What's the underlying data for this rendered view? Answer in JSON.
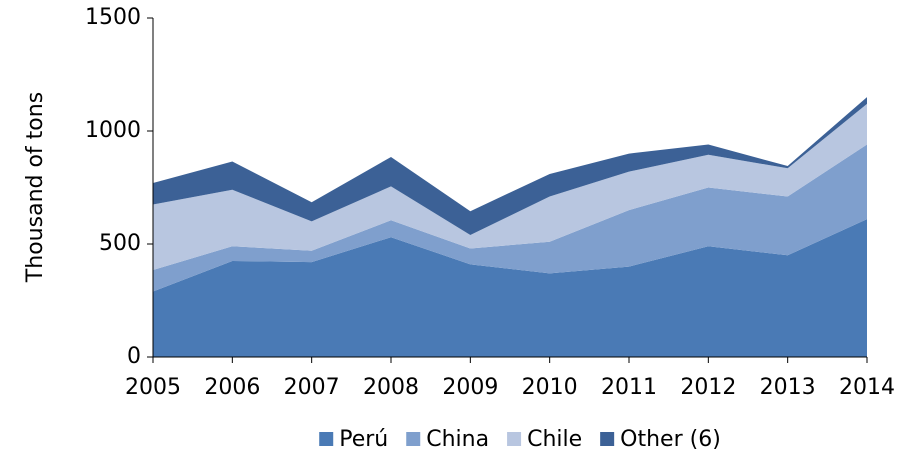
{
  "chart_data": {
    "type": "stacked_area",
    "y_label": "Thousand of tons",
    "categories": [
      "2005",
      "2006",
      "2007",
      "2008",
      "2009",
      "2010",
      "2011",
      "2012",
      "2013",
      "2014"
    ],
    "series": [
      {
        "name": "Perú",
        "color": "#4a7ab5",
        "values": [
          290,
          425,
          420,
          530,
          410,
          370,
          400,
          490,
          450,
          610
        ]
      },
      {
        "name": "China",
        "color": "#7f9fcd",
        "values": [
          95,
          65,
          50,
          75,
          70,
          140,
          250,
          260,
          260,
          330
        ]
      },
      {
        "name": "Chile",
        "color": "#b8c6e0",
        "values": [
          290,
          250,
          130,
          150,
          60,
          200,
          170,
          145,
          125,
          180
        ]
      },
      {
        "name": "Other (6)",
        "color": "#3c6196",
        "values": [
          95,
          125,
          85,
          130,
          105,
          100,
          80,
          45,
          10,
          30
        ]
      }
    ],
    "ylim": [
      0,
      1500
    ],
    "yticks": [
      0,
      500,
      1000,
      1500
    ],
    "legend": "bottom",
    "grid": false
  }
}
